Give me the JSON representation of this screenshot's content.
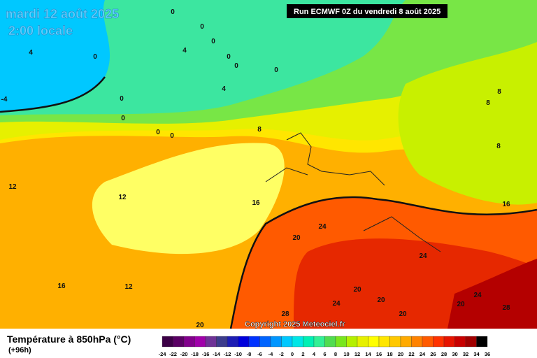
{
  "header": {
    "title": "mardi 12 août 2025",
    "subtitle": "2:00 locale",
    "run": "Run ECMWF 0Z du vendredi 8 août 2025"
  },
  "footer": {
    "copyright": "Copyright 2025 Meteociel.fr",
    "legend_title": "Température à 850hPa (°C)",
    "lead_time": "(+96h)"
  },
  "scale": {
    "ticks": [
      -24,
      -22,
      -20,
      -18,
      -16,
      -14,
      -12,
      -10,
      -8,
      -6,
      -4,
      -2,
      0,
      2,
      4,
      6,
      8,
      10,
      12,
      14,
      16,
      18,
      20,
      22,
      24,
      26,
      28,
      30,
      32,
      34,
      36
    ],
    "colors": [
      "#3c0046",
      "#5a0064",
      "#82008c",
      "#a000aa",
      "#6e3296",
      "#3c3c8c",
      "#1e1eb4",
      "#0000dc",
      "#0032ff",
      "#0064ff",
      "#0096ff",
      "#00c8ff",
      "#00e6e6",
      "#00f0b4",
      "#32f096",
      "#50dc50",
      "#78e61e",
      "#b4f000",
      "#e6f000",
      "#ffff00",
      "#ffe600",
      "#ffc800",
      "#ffaa00",
      "#ff8200",
      "#ff5a00",
      "#ff3200",
      "#e61400",
      "#c80000",
      "#a00000",
      "#000000"
    ]
  },
  "map": {
    "contour_labels": [
      "0",
      "0",
      "0",
      "0",
      "0",
      "0",
      "0",
      "0",
      "0",
      "0",
      "4",
      "4",
      "4",
      "-4",
      "0",
      "8",
      "8",
      "8",
      "8",
      "16",
      "12",
      "12",
      "16",
      "12",
      "16",
      "20",
      "24",
      "24",
      "20",
      "20",
      "24",
      "28",
      "20",
      "20",
      "24",
      "28",
      "20"
    ]
  }
}
